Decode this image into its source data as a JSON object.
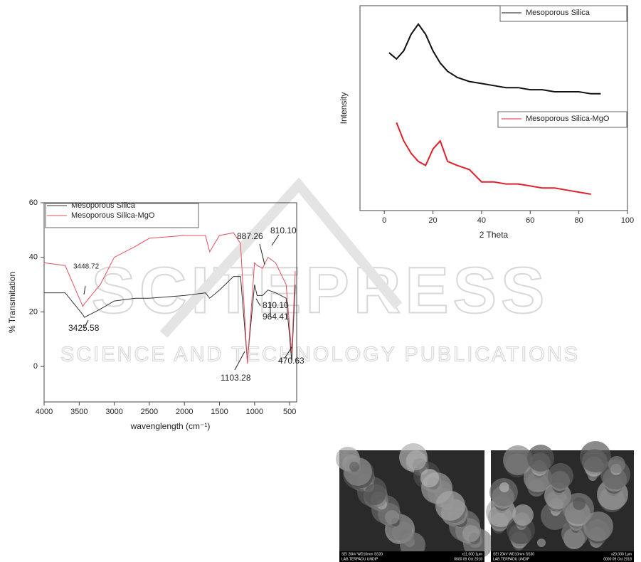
{
  "chart_data": [
    {
      "type": "line",
      "x_label": "wavenglength (cm⁻¹)",
      "y_label": "% Transmitation",
      "x": [
        4000,
        3700,
        3448,
        3425,
        3200,
        3000,
        2700,
        2500,
        2000,
        1700,
        1640,
        1500,
        1300,
        1200,
        1103,
        1000,
        964,
        887,
        810,
        700,
        550,
        470,
        420
      ],
      "series": [
        {
          "name": "Mesoporous Silica",
          "color": "#333333",
          "values": [
            27,
            27,
            19,
            18,
            21,
            24,
            25,
            25,
            26,
            27,
            25,
            28,
            33,
            33,
            2,
            30,
            26,
            26,
            28,
            27,
            25,
            2,
            30
          ]
        },
        {
          "name": "Mesoporous Silica-MgO",
          "color": "#e05060",
          "values": [
            38,
            37,
            22,
            23,
            30,
            40,
            44,
            47,
            48,
            48,
            42,
            48,
            49,
            45,
            1,
            38,
            37,
            36,
            40,
            38,
            30,
            5,
            35
          ]
        }
      ],
      "xlim": [
        4000,
        400
      ],
      "xticks": [
        4000,
        3500,
        3000,
        2500,
        2000,
        1500,
        1000,
        500
      ],
      "ylim": [
        -13,
        60
      ],
      "yticks": [
        0,
        20,
        40,
        60
      ],
      "annotations": [
        "3448.72",
        "3425.58",
        "887.26",
        "810.10",
        "810.10",
        "964.41",
        "1103.28",
        "470.63"
      ]
    },
    {
      "type": "line",
      "x_label": "2 Theta",
      "y_label": "Intensity",
      "x": [
        2,
        5,
        8,
        11,
        14,
        17,
        20,
        23,
        26,
        30,
        35,
        40,
        45,
        50,
        55,
        60,
        65,
        70,
        75,
        80,
        85,
        89
      ],
      "series": [
        {
          "name": "Mesoporous Silica",
          "color": "#111111",
          "values": [
            77,
            74,
            78,
            86,
            91,
            86,
            78,
            72,
            68,
            65,
            63,
            62,
            61,
            60,
            60,
            59,
            59,
            58,
            58,
            58,
            57,
            57
          ]
        },
        {
          "name": "Mesoporous Silica-MgO",
          "color": "#e0202a",
          "values": [
            null,
            43,
            34,
            28,
            24,
            22,
            30,
            34,
            24,
            22,
            20,
            14,
            14,
            13,
            13,
            12,
            11,
            11,
            10,
            9,
            8,
            null
          ]
        }
      ],
      "xlim": [
        -10,
        100
      ],
      "xticks": [
        0,
        20,
        40,
        60,
        80,
        100
      ],
      "ylim": [
        0,
        100
      ]
    }
  ],
  "images": [
    {
      "caption": [
        "SEI   20kV   WD10mm   SS30",
        "x11,000   1μm",
        "LAB.TERPADU UNDIP",
        "0000   09 Oct 2018"
      ]
    },
    {
      "caption": [
        "SEI   20kV   WD10mm   SS30",
        "x20,000   1μm",
        "LAB.TERPADU UNDIP",
        "0000   09 Oct 2018"
      ]
    }
  ],
  "watermark": {
    "title": "SCITEPRESS",
    "subtitle": "SCIENCE AND TECHNOLOGY PUBLICATIONS"
  }
}
